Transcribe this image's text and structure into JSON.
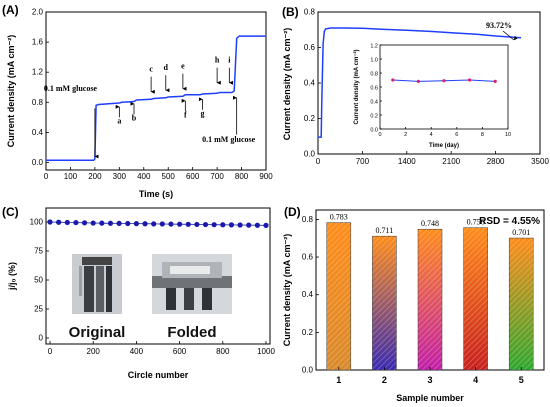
{
  "chart_data": [
    {
      "panel": "(A)",
      "type": "line",
      "xlabel": "Time (s)",
      "ylabel": "Current density (mA cm⁻²)",
      "xlim": [
        0,
        900
      ],
      "ylim": [
        -0.1,
        2.0
      ],
      "xticks": [
        "0",
        "100",
        "200",
        "300",
        "400",
        "500",
        "600",
        "700",
        "800",
        "900"
      ],
      "yticks": [
        "0.0",
        "0.4",
        "0.8",
        "1.2",
        "1.6",
        "2.0"
      ],
      "series": [
        {
          "color": "#1f3fff",
          "x": [
            0,
            195,
            200,
            205,
            215,
            300,
            310,
            360,
            370,
            430,
            440,
            490,
            500,
            560,
            570,
            630,
            640,
            700,
            710,
            760,
            770,
            780,
            790,
            900
          ],
          "y": [
            0.03,
            0.03,
            0.05,
            0.76,
            0.77,
            0.79,
            0.8,
            0.81,
            0.83,
            0.84,
            0.85,
            0.86,
            0.87,
            0.88,
            0.9,
            0.9,
            0.91,
            0.92,
            0.93,
            0.93,
            0.95,
            1.65,
            1.68,
            1.68
          ]
        }
      ],
      "annotations": [
        {
          "text": "0.1 mM glucose",
          "x": 100,
          "y": 0.95,
          "arrow_x": 200,
          "arrow_to_y": 0.05,
          "arrow_from_y": 0.78
        },
        {
          "text": "a",
          "x": 300,
          "y": 0.52,
          "arrow_x": 300,
          "arrow_dir": "up"
        },
        {
          "text": "b",
          "x": 360,
          "y": 0.56,
          "arrow_x": 360,
          "arrow_dir": "up"
        },
        {
          "text": "c",
          "x": 430,
          "y": 1.18,
          "arrow_x": 430,
          "arrow_dir": "down"
        },
        {
          "text": "d",
          "x": 490,
          "y": 1.2,
          "arrow_x": 490,
          "arrow_dir": "down"
        },
        {
          "text": "e",
          "x": 560,
          "y": 1.22,
          "arrow_x": 560,
          "arrow_dir": "down"
        },
        {
          "text": "f",
          "x": 570,
          "y": 0.6,
          "arrow_x": 570,
          "arrow_dir": "up"
        },
        {
          "text": "g",
          "x": 640,
          "y": 0.62,
          "arrow_x": 640,
          "arrow_dir": "up"
        },
        {
          "text": "h",
          "x": 700,
          "y": 1.3,
          "arrow_x": 700,
          "arrow_dir": "down"
        },
        {
          "text": "i",
          "x": 750,
          "y": 1.3,
          "arrow_x": 750,
          "arrow_dir": "down"
        },
        {
          "text": "0.1 mM glucose",
          "x": 780,
          "y": 0.27,
          "arrow_x": 780,
          "arrow_dir": "up"
        }
      ]
    },
    {
      "panel": "(B)",
      "type": "line",
      "xlabel": "",
      "ylabel": "Current density (mA cm⁻²)",
      "xlim": [
        0,
        3500
      ],
      "ylim": [
        0,
        0.8
      ],
      "xticks": [
        "0",
        "700",
        "1400",
        "2100",
        "2800",
        "3500"
      ],
      "yticks": [
        "0.0",
        "0.2",
        "0.4",
        "0.6",
        "0.8"
      ],
      "series": [
        {
          "color": "#1f3fff",
          "x": [
            0,
            50,
            60,
            80,
            100,
            120,
            200,
            400,
            700,
            1000,
            1400,
            1800,
            2100,
            2500,
            2800,
            3000,
            3200
          ],
          "y": [
            0.095,
            0.095,
            0.3,
            0.62,
            0.69,
            0.705,
            0.71,
            0.71,
            0.708,
            0.703,
            0.697,
            0.69,
            0.683,
            0.675,
            0.665,
            0.66,
            0.655
          ]
        }
      ],
      "annotations": [
        {
          "text": "93.72%"
        }
      ],
      "inset": {
        "type": "line",
        "xlabel": "Time (day)",
        "ylabel": "Current density (mA cm⁻²)",
        "xlim": [
          0,
          10
        ],
        "ylim": [
          0,
          1.2
        ],
        "xticks": [
          "0",
          "2",
          "4",
          "6",
          "8",
          "10"
        ],
        "yticks": [
          "0.0",
          "0.2",
          "0.4",
          "0.6",
          "0.8",
          "1.0",
          "1.2"
        ],
        "x": [
          1,
          3,
          5,
          7,
          9
        ],
        "y": [
          0.7,
          0.68,
          0.69,
          0.7,
          0.68
        ],
        "line_color": "#1f3fff",
        "marker_color": "#e0206a"
      }
    },
    {
      "panel": "(C)",
      "type": "scatter",
      "xlabel": "Circle number",
      "ylabel": "j/j₀ (%)",
      "xlim": [
        0,
        1000
      ],
      "ylim": [
        0,
        100
      ],
      "xticks": [
        "0",
        "200",
        "400",
        "600",
        "800",
        "1000"
      ],
      "yticks": [
        "0",
        "25",
        "50",
        "75",
        "100"
      ],
      "series": [
        {
          "color": "#1a1aaa",
          "x": [
            0,
            40,
            80,
            120,
            160,
            200,
            240,
            280,
            320,
            360,
            400,
            440,
            480,
            520,
            560,
            600,
            640,
            680,
            720,
            760,
            800,
            840,
            880,
            920,
            960,
            1000
          ],
          "y": [
            100,
            99.8,
            99.6,
            99.5,
            99.3,
            99.1,
            99.0,
            98.9,
            98.8,
            98.7,
            98.6,
            98.5,
            98.4,
            98.3,
            98.2,
            98.1,
            98.0,
            97.9,
            97.8,
            97.7,
            97.6,
            97.5,
            97.4,
            97.3,
            97.2,
            97.1
          ]
        }
      ],
      "photo_labels": [
        "Original",
        "Folded"
      ]
    },
    {
      "panel": "(D)",
      "type": "bar",
      "xlabel": "Sample number",
      "ylabel": "Current density (mA cm⁻²)",
      "ylim": [
        0,
        0.85
      ],
      "yticks": [
        "0.0",
        "0.2",
        "0.4",
        "0.6",
        "0.8"
      ],
      "categories": [
        "1",
        "2",
        "3",
        "4",
        "5"
      ],
      "values": [
        0.783,
        0.711,
        0.748,
        0.756,
        0.701
      ],
      "value_labels": [
        "0.783",
        "0.711",
        "0.748",
        "0.756",
        "0.701"
      ],
      "bar_colors": [
        [
          "#ff8c1a",
          "#d98a2b"
        ],
        [
          "#ff8c1a",
          "#3a2bb0"
        ],
        [
          "#ff8c1a",
          "#c21fa8"
        ],
        [
          "#ff8c1a",
          "#c81f1f"
        ],
        [
          "#ff8c1a",
          "#2fa82f"
        ]
      ],
      "annotations": [
        {
          "text": "RSD = 4.55%"
        }
      ]
    }
  ]
}
